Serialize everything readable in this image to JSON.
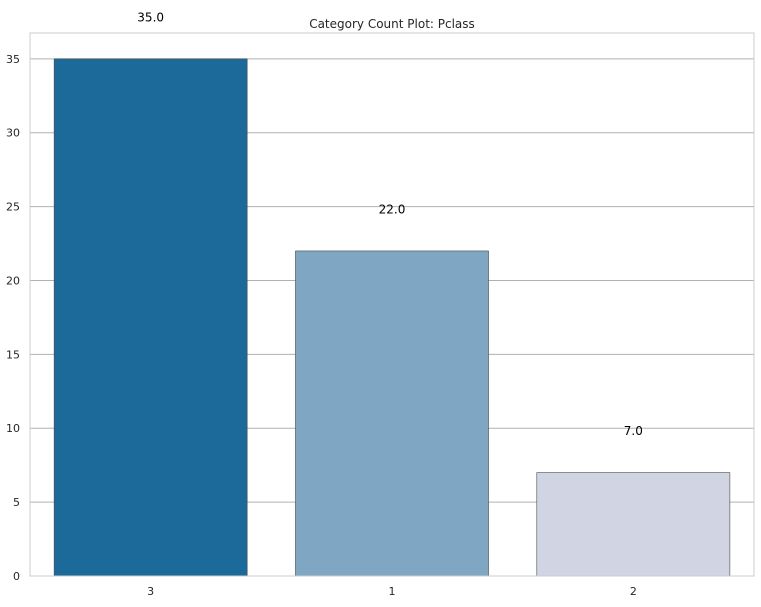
{
  "chart_data": {
    "type": "bar",
    "title": "Category Count Plot: Pclass",
    "xlabel": "",
    "ylabel": "",
    "categories": [
      "3",
      "1",
      "2"
    ],
    "values": [
      35,
      22,
      7
    ],
    "data_labels": [
      "35.0",
      "22.0",
      "7.0"
    ],
    "bar_colors": [
      "#1b6a9a",
      "#7fa7c4",
      "#d1d5e3"
    ],
    "ylim": [
      0,
      36.75
    ],
    "yticks": [
      0,
      5,
      10,
      15,
      20,
      25,
      30,
      35
    ],
    "ytick_labels": [
      "0",
      "5",
      "10",
      "15",
      "20",
      "25",
      "30",
      "35"
    ],
    "grid": "y",
    "legend": "none"
  }
}
